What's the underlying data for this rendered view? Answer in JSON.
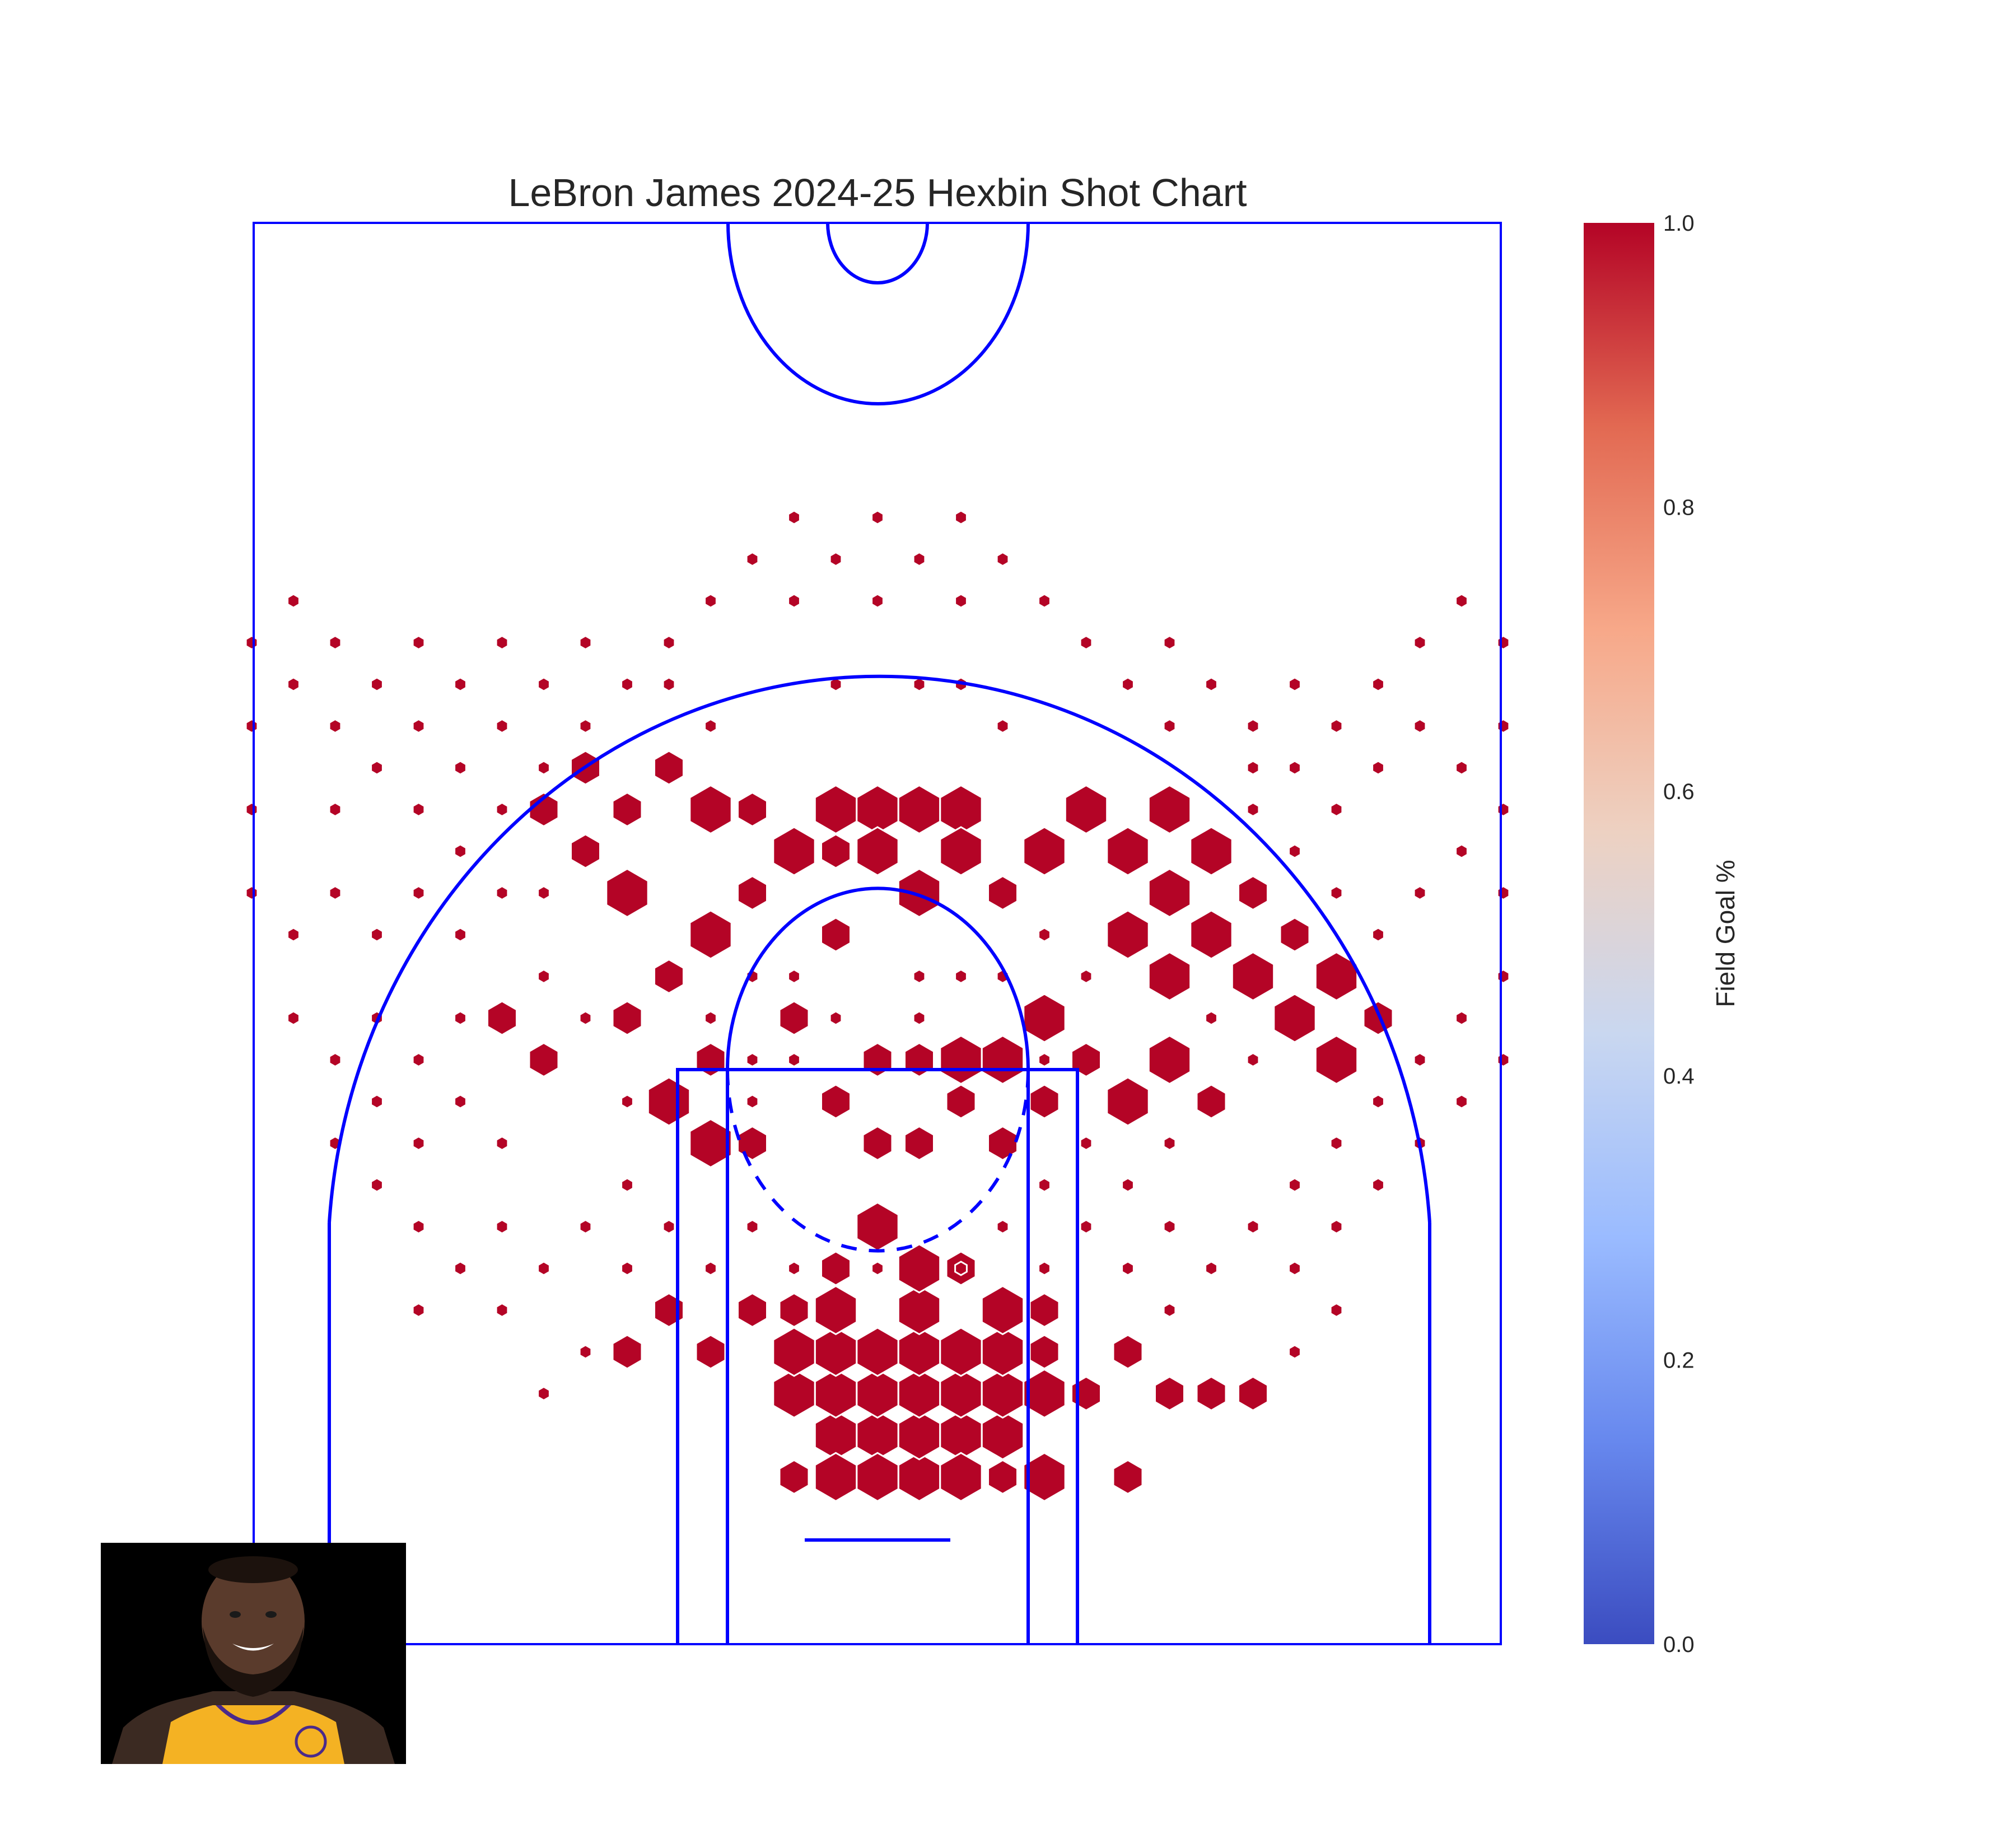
{
  "chart_data": {
    "type": "hexbin",
    "title": "LeBron James 2024-25 Hexbin Shot Chart",
    "colorbar": {
      "label": "Field Goal %",
      "colormap": "coolwarm",
      "range": [
        0.0,
        1.0
      ],
      "ticks": [
        "0.0",
        "0.2",
        "0.4",
        "0.6",
        "0.8",
        "1.0"
      ],
      "colors": [
        "#3b4cc0",
        "#6788ee",
        "#9abbff",
        "#c9d7f0",
        "#edd1c2",
        "#f7a889",
        "#e26952",
        "#b40426"
      ]
    },
    "hex_color": "#b40426",
    "court_line_color": "#0000ff",
    "grid": false,
    "shot_hexbins": [
      [
        0,
        2,
        3,
        3
      ],
      [
        0,
        3,
        3,
        3
      ],
      [
        0,
        4,
        3,
        2
      ],
      [
        1,
        1,
        3,
        3
      ],
      [
        1,
        2,
        3,
        3
      ],
      [
        1,
        3,
        3,
        3
      ],
      [
        1,
        4,
        3,
        3
      ],
      [
        1,
        5,
        3,
        2
      ],
      [
        2,
        2,
        3,
        3
      ],
      [
        2,
        3,
        3,
        3
      ],
      [
        2,
        4,
        3,
        3
      ],
      [
        3,
        2,
        3,
        3
      ],
      [
        3,
        3,
        3,
        3
      ],
      [
        0,
        1,
        3,
        2
      ],
      [
        -1,
        2,
        3,
        2
      ],
      [
        -1,
        3,
        3,
        2
      ],
      [
        -1,
        4,
        3,
        2
      ],
      [
        -1,
        5,
        3,
        2
      ],
      [
        -2,
        3,
        3,
        2
      ],
      [
        -2,
        4,
        3,
        2
      ],
      [
        3,
        4,
        3,
        2
      ],
      [
        1,
        6,
        3,
        2
      ],
      [
        -1,
        6,
        2,
        1
      ],
      [
        4,
        3,
        3,
        2
      ],
      [
        4,
        1,
        3,
        2
      ],
      [
        0,
        7,
        3,
        1
      ],
      [
        2,
        6,
        2,
        2
      ],
      [
        3,
        5,
        3,
        1
      ],
      [
        4,
        4,
        2,
        1
      ],
      [
        -2,
        5,
        2,
        1
      ],
      [
        -4,
        4,
        2,
        2
      ],
      [
        -3,
        5,
        2,
        1
      ],
      [
        -1,
        1,
        3,
        1
      ],
      [
        2,
        1,
        3,
        1
      ],
      [
        3,
        1,
        2,
        1
      ],
      [
        -6,
        4,
        2,
        2
      ],
      [
        -5,
        5,
        2,
        1
      ],
      [
        -2,
        1,
        2,
        1
      ],
      [
        5,
        3,
        2,
        2
      ],
      [
        6,
        1,
        2,
        2
      ],
      [
        7,
        3,
        2,
        1
      ],
      [
        8,
        3,
        2,
        1
      ],
      [
        9,
        3,
        2,
        2
      ],
      [
        10,
        4,
        1,
        1
      ],
      [
        6,
        4,
        2,
        1
      ],
      [
        7,
        5,
        1,
        1
      ],
      [
        4,
        5,
        2,
        2
      ],
      [
        -7,
        4,
        1,
        1
      ],
      [
        -8,
        3,
        1,
        1
      ],
      [
        -9,
        5,
        1,
        1
      ],
      [
        1,
        9,
        2,
        1
      ],
      [
        2,
        10,
        2,
        1
      ],
      [
        3,
        9,
        2,
        1
      ],
      [
        0,
        9,
        2,
        1
      ],
      [
        -1,
        10,
        2,
        1
      ],
      [
        0,
        11,
        2,
        1
      ],
      [
        1,
        11,
        2,
        1
      ],
      [
        2,
        11,
        3,
        1
      ],
      [
        3,
        11,
        3,
        1
      ],
      [
        4,
        10,
        2,
        1
      ],
      [
        5,
        11,
        2,
        1
      ],
      [
        4,
        12,
        3,
        1
      ],
      [
        6,
        10,
        3,
        1
      ],
      [
        7,
        11,
        3,
        1
      ],
      [
        8,
        10,
        2,
        1
      ],
      [
        -4,
        11,
        2,
        1
      ],
      [
        -5,
        10,
        3,
        1
      ],
      [
        -3,
        9,
        2,
        1
      ],
      [
        -4,
        9,
        3,
        1
      ],
      [
        -6,
        12,
        2,
        1
      ],
      [
        -8,
        11,
        2,
        1
      ],
      [
        -9,
        12,
        2,
        1
      ],
      [
        -1,
        14,
        2,
        1
      ],
      [
        -4,
        14,
        3,
        1
      ],
      [
        -5,
        13,
        2,
        1
      ],
      [
        -3,
        15,
        2,
        1
      ],
      [
        -6,
        15,
        3,
        1
      ],
      [
        -7,
        16,
        2,
        1
      ],
      [
        -1,
        17,
        3,
        1
      ],
      [
        0,
        17,
        3,
        1
      ],
      [
        1,
        17,
        3,
        1
      ],
      [
        2,
        17,
        3,
        1
      ],
      [
        1,
        15,
        3,
        1
      ],
      [
        0,
        16,
        3,
        1
      ],
      [
        -1,
        16,
        2,
        1
      ],
      [
        -2,
        16,
        3,
        1
      ],
      [
        -3,
        17,
        2,
        1
      ],
      [
        -4,
        17,
        3,
        1
      ],
      [
        -5,
        18,
        2,
        1
      ],
      [
        -6,
        17,
        2,
        1
      ],
      [
        -7,
        18,
        2,
        1
      ],
      [
        -7,
        16,
        2,
        1
      ],
      [
        -8,
        17,
        2,
        1
      ],
      [
        2,
        16,
        3,
        1
      ],
      [
        3,
        15,
        2,
        1
      ],
      [
        4,
        16,
        3,
        1
      ],
      [
        5,
        17,
        3,
        1
      ],
      [
        6,
        16,
        3,
        1
      ],
      [
        7,
        17,
        3,
        1
      ],
      [
        8,
        16,
        3,
        1
      ],
      [
        7,
        15,
        3,
        1
      ],
      [
        6,
        14,
        3,
        1
      ],
      [
        7,
        13,
        3,
        1
      ],
      [
        8,
        14,
        3,
        1
      ],
      [
        9,
        15,
        2,
        1
      ],
      [
        9,
        13,
        3,
        1
      ],
      [
        10,
        14,
        2,
        1
      ],
      [
        10,
        12,
        3,
        1
      ],
      [
        11,
        13,
        3,
        1
      ],
      [
        11,
        11,
        3,
        1
      ],
      [
        12,
        12,
        2,
        1
      ],
      [
        -1,
        20,
        1,
        1
      ],
      [
        1,
        20,
        1,
        1
      ],
      [
        -4,
        19,
        1,
        1
      ],
      [
        -5,
        20,
        1,
        1
      ],
      [
        3,
        19,
        1,
        1
      ],
      [
        2,
        20,
        1,
        1
      ],
      [
        9,
        18,
        1,
        1
      ],
      [
        4,
        11,
        1,
        1
      ],
      [
        -1,
        12,
        1,
        1
      ],
      [
        -2,
        12,
        2,
        1
      ],
      [
        -3,
        13,
        1,
        1
      ],
      [
        1,
        12,
        1,
        1
      ],
      [
        2,
        13,
        1,
        1
      ],
      [
        3,
        13,
        1,
        1
      ],
      [
        -2,
        11,
        1,
        1
      ],
      [
        1,
        13,
        1,
        1
      ],
      [
        -2,
        13,
        1,
        1
      ],
      [
        0,
        6,
        1,
        1
      ],
      [
        -2,
        6,
        1,
        1
      ],
      [
        -3,
        7,
        1,
        1
      ],
      [
        -4,
        6,
        1,
        1
      ],
      [
        -5,
        7,
        1,
        1
      ],
      [
        -6,
        6,
        1,
        1
      ],
      [
        -7,
        7,
        1,
        1
      ],
      [
        -8,
        6,
        1,
        1
      ],
      [
        -9,
        7,
        1,
        1
      ],
      [
        -10,
        6,
        1,
        1
      ],
      [
        2,
        6,
        1,
        1
      ],
      [
        3,
        7,
        1,
        1
      ],
      [
        4,
        6,
        1,
        1
      ],
      [
        5,
        7,
        1,
        1
      ],
      [
        6,
        6,
        1,
        1
      ],
      [
        7,
        7,
        1,
        1
      ],
      [
        8,
        6,
        1,
        1
      ],
      [
        9,
        7,
        1,
        1
      ],
      [
        10,
        6,
        1,
        1
      ],
      [
        11,
        7,
        1,
        1
      ],
      [
        -11,
        7,
        1,
        1
      ],
      [
        -11,
        5,
        1,
        1
      ],
      [
        11,
        5,
        1,
        1
      ],
      [
        -9,
        9,
        1,
        1
      ],
      [
        -10,
        10,
        1,
        1
      ],
      [
        -11,
        9,
        1,
        1
      ],
      [
        -12,
        10,
        1,
        1
      ],
      [
        -12,
        8,
        1,
        1
      ],
      [
        -11,
        11,
        1,
        1
      ],
      [
        -13,
        11,
        1,
        1
      ],
      [
        -13,
        9,
        1,
        1
      ],
      [
        -14,
        12,
        1,
        1
      ],
      [
        -12,
        12,
        1,
        1
      ],
      [
        -10,
        12,
        1,
        1
      ],
      [
        -8,
        13,
        1,
        1
      ],
      [
        -7,
        12,
        1,
        1
      ],
      [
        -6,
        10,
        1,
        1
      ],
      [
        -6,
        8,
        1,
        1
      ],
      [
        -4,
        12,
        1,
        1
      ],
      [
        -3,
        11,
        1,
        1
      ],
      [
        -3,
        10,
        1,
        1
      ],
      [
        10,
        8,
        1,
        1
      ],
      [
        11,
        9,
        1,
        1
      ],
      [
        12,
        8,
        1,
        1
      ],
      [
        12,
        10,
        1,
        1
      ],
      [
        13,
        9,
        1,
        1
      ],
      [
        13,
        11,
        1,
        1
      ],
      [
        14,
        10,
        1,
        1
      ],
      [
        14,
        12,
        1,
        1
      ],
      [
        15,
        11,
        1,
        1
      ],
      [
        15,
        13,
        1,
        1
      ],
      [
        16,
        12,
        1,
        1
      ],
      [
        9,
        11,
        1,
        1
      ],
      [
        8,
        12,
        1,
        1
      ],
      [
        7,
        9,
        1,
        1
      ],
      [
        5,
        9,
        1,
        1
      ],
      [
        6,
        8,
        1,
        1
      ],
      [
        5,
        13,
        1,
        1
      ],
      [
        4,
        14,
        1,
        1
      ],
      [
        4,
        8,
        1,
        1
      ],
      [
        -14,
        14,
        1,
        1
      ],
      [
        -13,
        15,
        1,
        1
      ],
      [
        -12,
        14,
        1,
        1
      ],
      [
        -10,
        14,
        1,
        1
      ],
      [
        -9,
        15,
        1,
        1
      ],
      [
        -8,
        15,
        1,
        1
      ],
      [
        -11,
        15,
        1,
        1
      ],
      [
        -10,
        16,
        1,
        1
      ],
      [
        -9,
        17,
        1,
        1
      ],
      [
        -8,
        18,
        1,
        1
      ],
      [
        -10,
        18,
        1,
        1
      ],
      [
        -11,
        19,
        1,
        1
      ],
      [
        -12,
        18,
        1,
        1
      ],
      [
        -13,
        17,
        1,
        1
      ],
      [
        -12,
        20,
        1,
        1
      ],
      [
        -13,
        19,
        1,
        1
      ],
      [
        -14,
        20,
        1,
        1
      ],
      [
        -11,
        17,
        1,
        1
      ],
      [
        -10,
        20,
        1,
        1
      ],
      [
        -9,
        19,
        1,
        1
      ],
      [
        -8,
        20,
        1,
        1
      ],
      [
        -7,
        21,
        1,
        1
      ],
      [
        12,
        14,
        1,
        1
      ],
      [
        11,
        15,
        1,
        1
      ],
      [
        10,
        16,
        1,
        1
      ],
      [
        9,
        17,
        1,
        1
      ],
      [
        13,
        15,
        1,
        1
      ],
      [
        14,
        16,
        1,
        1
      ],
      [
        14,
        18,
        1,
        1
      ],
      [
        13,
        19,
        1,
        1
      ],
      [
        12,
        18,
        1,
        1
      ],
      [
        11,
        19,
        1,
        1
      ],
      [
        10,
        18,
        1,
        1
      ],
      [
        11,
        17,
        1,
        1
      ],
      [
        12,
        20,
        1,
        1
      ],
      [
        13,
        21,
        1,
        1
      ],
      [
        10,
        20,
        1,
        1
      ],
      [
        9,
        19,
        1,
        1
      ],
      [
        8,
        20,
        1,
        1
      ],
      [
        7,
        21,
        1,
        1
      ],
      [
        15,
        15,
        1,
        1
      ],
      [
        15,
        17,
        1,
        1
      ],
      [
        15,
        19,
        1,
        1
      ],
      [
        15,
        21,
        1,
        1
      ],
      [
        16,
        18,
        1,
        1
      ],
      [
        16,
        20,
        1,
        1
      ],
      [
        14,
        22,
        1,
        1
      ],
      [
        16,
        22,
        1,
        1
      ],
      [
        -15,
        15,
        1,
        1
      ],
      [
        -15,
        17,
        1,
        1
      ],
      [
        -15,
        19,
        1,
        1
      ],
      [
        -15,
        21,
        1,
        1
      ],
      [
        -16,
        20,
        1,
        1
      ],
      [
        -16,
        22,
        1,
        1
      ],
      [
        -14,
        22,
        1,
        1
      ],
      [
        -13,
        21,
        1,
        1
      ],
      [
        -11,
        21,
        1,
        1
      ],
      [
        -9,
        21,
        1,
        1
      ],
      [
        -2,
        24,
        1,
        1
      ],
      [
        0,
        24,
        1,
        1
      ],
      [
        2,
        24,
        1,
        1
      ],
      [
        -2,
        22,
        1,
        1
      ],
      [
        0,
        22,
        1,
        1
      ],
      [
        2,
        22,
        1,
        1
      ],
      [
        -3,
        23,
        1,
        1
      ],
      [
        -1,
        23,
        1,
        1
      ],
      [
        1,
        23,
        1,
        1
      ],
      [
        3,
        23,
        1,
        1
      ],
      [
        -4,
        22,
        1,
        1
      ],
      [
        4,
        22,
        1,
        1
      ],
      [
        -5,
        21,
        1,
        1
      ],
      [
        5,
        21,
        1,
        1
      ],
      [
        -6,
        20,
        1,
        1
      ],
      [
        6,
        20,
        1,
        1
      ],
      [
        -7,
        19,
        1,
        1
      ],
      [
        7,
        19,
        1,
        1
      ]
    ]
  }
}
